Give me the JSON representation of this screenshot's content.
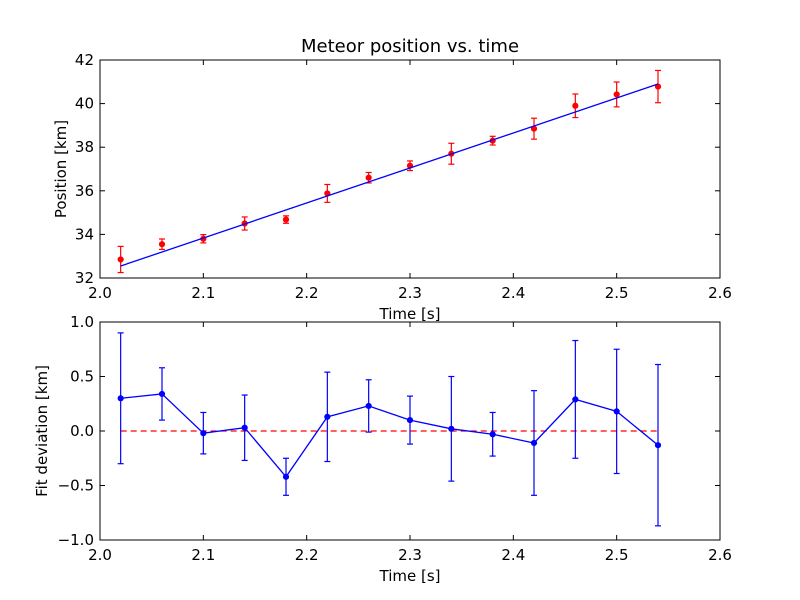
{
  "chart_data": [
    {
      "type": "scatter",
      "title": "Meteor position vs. time",
      "xlabel": "Time [s]",
      "ylabel": "Position [km]",
      "xlim": [
        2.0,
        2.6
      ],
      "ylim": [
        32,
        42
      ],
      "xticks": [
        2.0,
        2.1,
        2.2,
        2.3,
        2.4,
        2.5,
        2.6
      ],
      "yticks": [
        32,
        34,
        36,
        38,
        40,
        42
      ],
      "xtick_labels": [
        "2.0",
        "2.1",
        "2.2",
        "2.3",
        "2.4",
        "2.5",
        "2.6"
      ],
      "ytick_labels": [
        "32",
        "34",
        "36",
        "38",
        "40",
        "42"
      ],
      "grid": false,
      "series": [
        {
          "style": "points-with-errorbars",
          "color": "#ff0000",
          "x": [
            2.02,
            2.06,
            2.1,
            2.14,
            2.18,
            2.22,
            2.26,
            2.3,
            2.34,
            2.38,
            2.42,
            2.46,
            2.5,
            2.54
          ],
          "y": [
            32.85,
            33.55,
            33.8,
            34.5,
            34.68,
            35.88,
            36.6,
            37.15,
            37.7,
            38.3,
            38.85,
            39.9,
            40.42,
            40.78
          ],
          "yerr": [
            0.6,
            0.24,
            0.19,
            0.3,
            0.17,
            0.41,
            0.24,
            0.22,
            0.48,
            0.2,
            0.48,
            0.54,
            0.57,
            0.74
          ]
        },
        {
          "style": "line",
          "color": "#0000ff",
          "x": [
            2.02,
            2.54
          ],
          "y": [
            32.55,
            40.9
          ]
        }
      ]
    },
    {
      "type": "line",
      "title": "",
      "xlabel": "Time [s]",
      "ylabel": "Fit deviation [km]",
      "xlim": [
        2.0,
        2.6
      ],
      "ylim": [
        -1.0,
        1.0
      ],
      "xticks": [
        2.0,
        2.1,
        2.2,
        2.3,
        2.4,
        2.5,
        2.6
      ],
      "yticks": [
        -1.0,
        -0.5,
        0.0,
        0.5,
        1.0
      ],
      "xtick_labels": [
        "2.0",
        "2.1",
        "2.2",
        "2.3",
        "2.4",
        "2.5",
        "2.6"
      ],
      "ytick_labels": [
        "−1.0",
        "−0.5",
        "0.0",
        "0.5",
        "1.0"
      ],
      "grid": false,
      "reference_line": {
        "y": 0.0,
        "color": "#ff0000",
        "style": "dashed",
        "x": [
          2.02,
          2.54
        ]
      },
      "series": [
        {
          "style": "line-points-with-errorbars",
          "color": "#0000ff",
          "x": [
            2.02,
            2.06,
            2.1,
            2.14,
            2.18,
            2.22,
            2.26,
            2.3,
            2.34,
            2.38,
            2.42,
            2.46,
            2.5,
            2.54
          ],
          "y": [
            0.3,
            0.34,
            -0.02,
            0.03,
            -0.42,
            0.13,
            0.23,
            0.1,
            0.02,
            -0.03,
            -0.11,
            0.29,
            0.18,
            -0.13
          ],
          "yerr": [
            0.6,
            0.24,
            0.19,
            0.3,
            0.17,
            0.41,
            0.24,
            0.22,
            0.48,
            0.2,
            0.48,
            0.54,
            0.57,
            0.74
          ]
        }
      ]
    }
  ]
}
